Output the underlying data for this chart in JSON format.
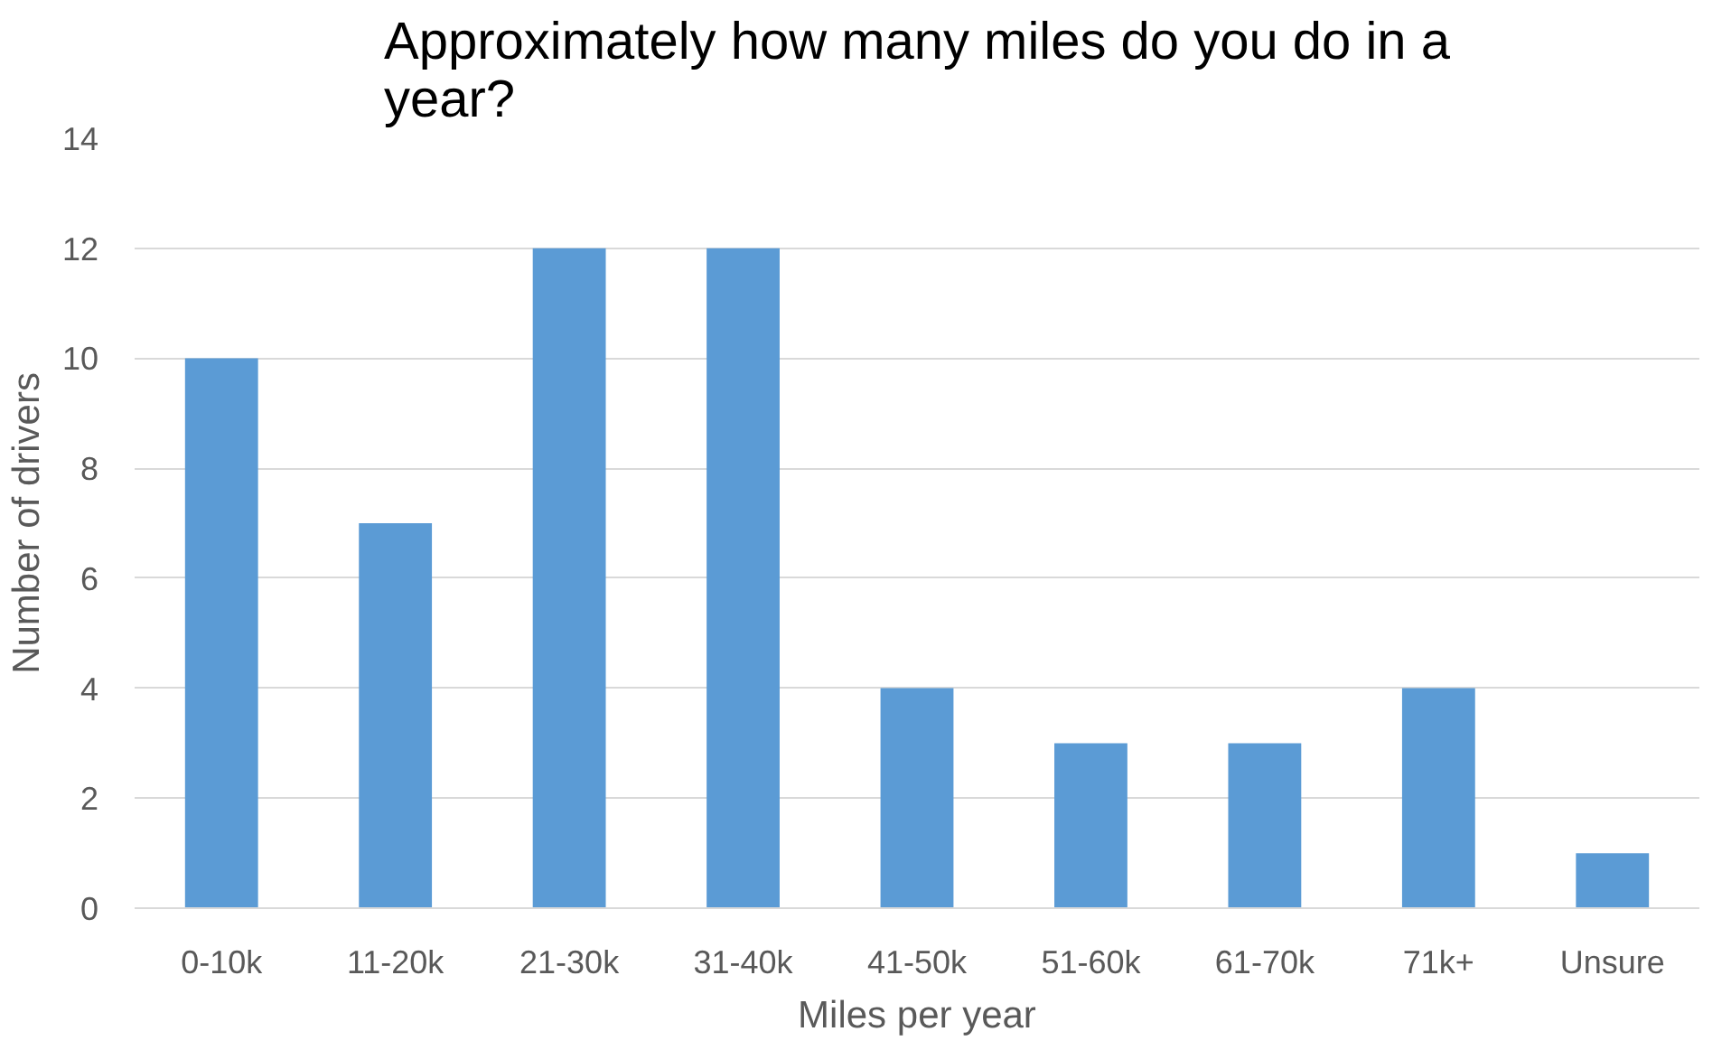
{
  "chart_data": {
    "type": "bar",
    "title": "Approximately how many miles do you do in a year?",
    "xlabel": "Miles per year",
    "ylabel": "Number of drivers",
    "categories": [
      "0-10k",
      "11-20k",
      "21-30k",
      "31-40k",
      "41-50k",
      "51-60k",
      "61-70k",
      "71k+",
      "Unsure"
    ],
    "values": [
      10,
      7,
      12,
      12,
      4,
      3,
      3,
      4,
      1
    ],
    "color": "#5b9bd5",
    "ylim": [
      0,
      14
    ],
    "yticks": [
      0,
      2,
      4,
      6,
      8,
      10,
      12,
      14
    ],
    "grid": "y"
  }
}
